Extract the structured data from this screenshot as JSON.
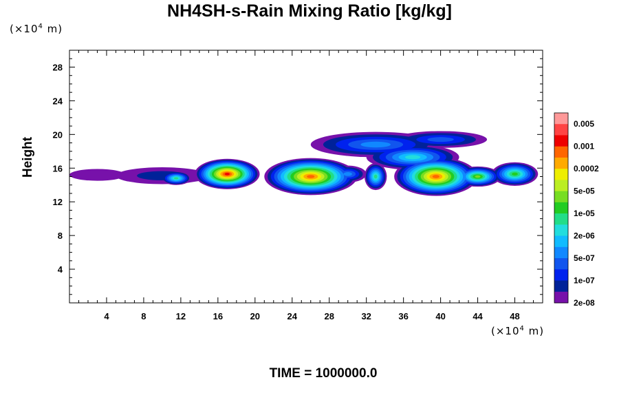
{
  "chart_data": {
    "type": "heatmap",
    "title": "NH4SH-s-Rain Mixing Ratio [kg/kg]",
    "ylabel": "Height",
    "xunit": {
      "prefix": "(×10",
      "exp": "4",
      "suffix": " m)"
    },
    "yunit": {
      "prefix": "(×10",
      "exp": "4",
      "suffix": " m)"
    },
    "footer": "TIME = 1000000.0",
    "xlim": [
      0,
      51
    ],
    "ylim": [
      0,
      30
    ],
    "xticks": [
      4,
      8,
      12,
      16,
      20,
      24,
      28,
      32,
      36,
      40,
      44,
      48
    ],
    "yticks": [
      4,
      8,
      12,
      16,
      20,
      24,
      28
    ],
    "colorbar": {
      "labels": [
        "0.005",
        "0.001",
        "0.0002",
        "5e-05",
        "1e-05",
        "2e-06",
        "5e-07",
        "1e-07",
        "2e-08"
      ],
      "colors": [
        "#ff9999",
        "#ff4444",
        "#ee0000",
        "#ff6600",
        "#ffaa00",
        "#eeee00",
        "#bbee22",
        "#77dd22",
        "#22cc22",
        "#22dd88",
        "#22dddd",
        "#11bbff",
        "#1188ff",
        "#1155ee",
        "#0022ee",
        "#002299",
        "#7711aa"
      ]
    },
    "blobs": [
      {
        "x": 3,
        "y": 15.2,
        "rx": 3,
        "ry": 0.7,
        "level": 0
      },
      {
        "x": 10,
        "y": 15.1,
        "rx": 5,
        "ry": 1.0,
        "level": 1
      },
      {
        "x": 17,
        "y": 15.3,
        "rx": 3.5,
        "ry": 1.8,
        "level": 14
      },
      {
        "x": 11.5,
        "y": 14.8,
        "rx": 1.6,
        "ry": 0.8,
        "level": 7
      },
      {
        "x": 26,
        "y": 15,
        "rx": 5,
        "ry": 2.2,
        "level": 13
      },
      {
        "x": 33,
        "y": 18.8,
        "rx": 7,
        "ry": 1.5,
        "level": 4
      },
      {
        "x": 40,
        "y": 19.4,
        "rx": 5,
        "ry": 1.0,
        "level": 3
      },
      {
        "x": 37,
        "y": 17.3,
        "rx": 5,
        "ry": 1.5,
        "level": 6
      },
      {
        "x": 39.5,
        "y": 15,
        "rx": 4.5,
        "ry": 2.3,
        "level": 13
      },
      {
        "x": 33,
        "y": 15,
        "rx": 1.2,
        "ry": 1.6,
        "level": 7
      },
      {
        "x": 44,
        "y": 15,
        "rx": 2.5,
        "ry": 1.2,
        "level": 9
      },
      {
        "x": 48,
        "y": 15.3,
        "rx": 2.5,
        "ry": 1.4,
        "level": 8
      },
      {
        "x": 30,
        "y": 15.3,
        "rx": 2,
        "ry": 1.0,
        "level": 4
      }
    ]
  }
}
